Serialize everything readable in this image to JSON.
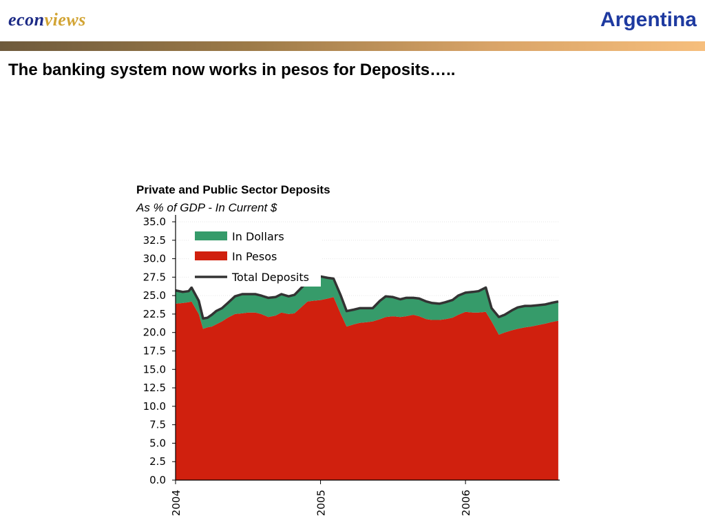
{
  "brand": {
    "part1": "econ",
    "part2": "views"
  },
  "header": {
    "country": "Argentina"
  },
  "headline": "The banking system now works in pesos for Deposits…..",
  "colors": {
    "dollars": "#369b6a",
    "pesos": "#d0200e",
    "total": "#333333",
    "brand_blue": "#1d2b86",
    "brand_gold": "#d2a434"
  },
  "chart_data": {
    "type": "area",
    "title": "Private and Public Sector Deposits",
    "subtitle": "As % of GDP - In Current $",
    "xlabel": "",
    "ylabel": "",
    "ylim": [
      0,
      35
    ],
    "yticks": [
      "0.0",
      "2.5",
      "5.0",
      "7.5",
      "10.0",
      "12.5",
      "15.0",
      "17.5",
      "20.0",
      "22.5",
      "25.0",
      "27.5",
      "30.0",
      "32.5",
      "35.0"
    ],
    "xlim": [
      2004.0,
      2006.65
    ],
    "xticks": [
      {
        "label": "2004",
        "value": 2004.0
      },
      {
        "label": "2005",
        "value": 2005.0
      },
      {
        "label": "2006",
        "value": 2006.0
      }
    ],
    "grid": true,
    "legend_position": "top-left",
    "x": [
      2004.0,
      2004.05,
      2004.09,
      2004.11,
      2004.16,
      2004.19,
      2004.22,
      2004.25,
      2004.28,
      2004.32,
      2004.36,
      2004.41,
      2004.46,
      2004.5,
      2004.55,
      2004.59,
      2004.64,
      2004.69,
      2004.73,
      2004.78,
      2004.82,
      2004.86,
      2004.91,
      2004.95,
      2005.0,
      2005.05,
      2005.09,
      2005.14,
      2005.18,
      2005.23,
      2005.27,
      2005.32,
      2005.36,
      2005.41,
      2005.45,
      2005.5,
      2005.55,
      2005.59,
      2005.64,
      2005.68,
      2005.73,
      2005.77,
      2005.82,
      2005.86,
      2005.91,
      2005.95,
      2006.0,
      2006.05,
      2006.09,
      2006.14,
      2006.18,
      2006.23,
      2006.27,
      2006.32,
      2006.36,
      2006.41,
      2006.45,
      2006.5,
      2006.55,
      2006.59,
      2006.64
    ],
    "series": [
      {
        "name": "In Pesos",
        "values": [
          23.9,
          24.0,
          24.1,
          24.2,
          22.5,
          20.5,
          20.7,
          20.8,
          21.1,
          21.5,
          22.0,
          22.5,
          22.6,
          22.7,
          22.7,
          22.5,
          22.1,
          22.3,
          22.7,
          22.5,
          22.6,
          23.3,
          24.2,
          24.3,
          24.4,
          24.6,
          24.8,
          22.5,
          20.8,
          21.1,
          21.3,
          21.4,
          21.5,
          21.8,
          22.1,
          22.2,
          22.1,
          22.2,
          22.4,
          22.2,
          21.8,
          21.7,
          21.7,
          21.8,
          22.0,
          22.4,
          22.8,
          22.7,
          22.7,
          22.8,
          21.5,
          19.7,
          20.0,
          20.3,
          20.5,
          20.7,
          20.8,
          21.0,
          21.2,
          21.4,
          21.6
        ]
      },
      {
        "name": "In Dollars",
        "values": [
          1.8,
          1.5,
          1.5,
          1.9,
          1.8,
          1.4,
          1.3,
          1.6,
          1.8,
          1.8,
          2.0,
          2.4,
          2.6,
          2.5,
          2.5,
          2.5,
          2.6,
          2.5,
          2.5,
          2.4,
          2.5,
          2.6,
          2.7,
          2.9,
          3.2,
          2.8,
          2.5,
          2.5,
          2.1,
          2.0,
          2.0,
          1.9,
          1.8,
          2.5,
          2.8,
          2.6,
          2.4,
          2.5,
          2.3,
          2.4,
          2.4,
          2.3,
          2.2,
          2.3,
          2.4,
          2.6,
          2.6,
          2.8,
          2.9,
          3.3,
          1.8,
          2.4,
          2.4,
          2.7,
          2.9,
          2.9,
          2.8,
          2.7,
          2.6,
          2.6,
          2.6
        ]
      },
      {
        "name": "Total Deposits",
        "values": [
          25.7,
          25.5,
          25.6,
          26.1,
          24.3,
          21.9,
          22.0,
          22.4,
          22.9,
          23.3,
          24.0,
          24.9,
          25.2,
          25.2,
          25.2,
          25.0,
          24.7,
          24.8,
          25.2,
          24.9,
          25.1,
          25.9,
          26.9,
          27.2,
          27.6,
          27.4,
          27.3,
          25.0,
          22.9,
          23.1,
          23.3,
          23.3,
          23.3,
          24.3,
          24.9,
          24.8,
          24.5,
          24.7,
          24.7,
          24.6,
          24.2,
          24.0,
          23.9,
          24.1,
          24.4,
          25.0,
          25.4,
          25.5,
          25.6,
          26.1,
          23.3,
          22.1,
          22.4,
          23.0,
          23.4,
          23.6,
          23.6,
          23.7,
          23.8,
          24.0,
          24.2
        ]
      }
    ]
  }
}
